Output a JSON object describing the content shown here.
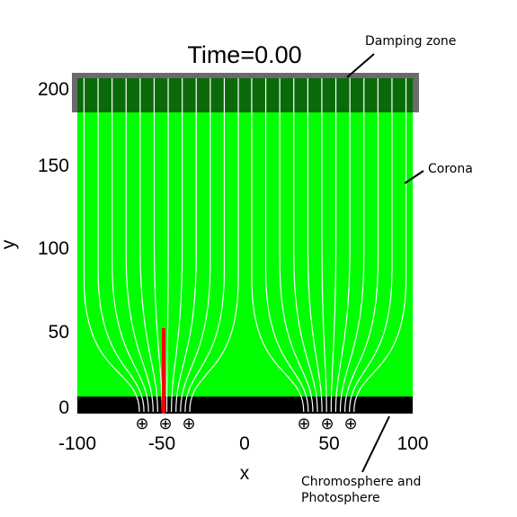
{
  "title": "Time=0.00",
  "xlabel": "x",
  "ylabel": "y",
  "annotations": {
    "damping_zone": "Damping zone",
    "corona": "Corona",
    "chromosphere_line1": "Chromosphere and",
    "chromosphere_line2": "Photosphere"
  },
  "x_ticks": [
    "-100",
    "-50",
    "0",
    "50",
    "100"
  ],
  "y_ticks": [
    "200",
    "150",
    "100",
    "50",
    "0"
  ],
  "source_symbol": "⊕",
  "colors": {
    "corona": "#00ff00",
    "damping_zone": "#707070",
    "chromosphere": "#000000",
    "field_lines": "#ffffff",
    "red_segment": "#ff0000"
  },
  "chart_data": {
    "type": "diagram",
    "xlim": [
      -100,
      100
    ],
    "ylim": [
      0,
      205
    ],
    "damping_zone_y_start": 180,
    "chromosphere_y_end": 10,
    "source_x_positions": [
      -61,
      -47,
      -33,
      36,
      50,
      64
    ],
    "red_segment": {
      "x": -48,
      "y_start": 0,
      "y_end": 51
    },
    "field_line_count_per_group": 12
  }
}
